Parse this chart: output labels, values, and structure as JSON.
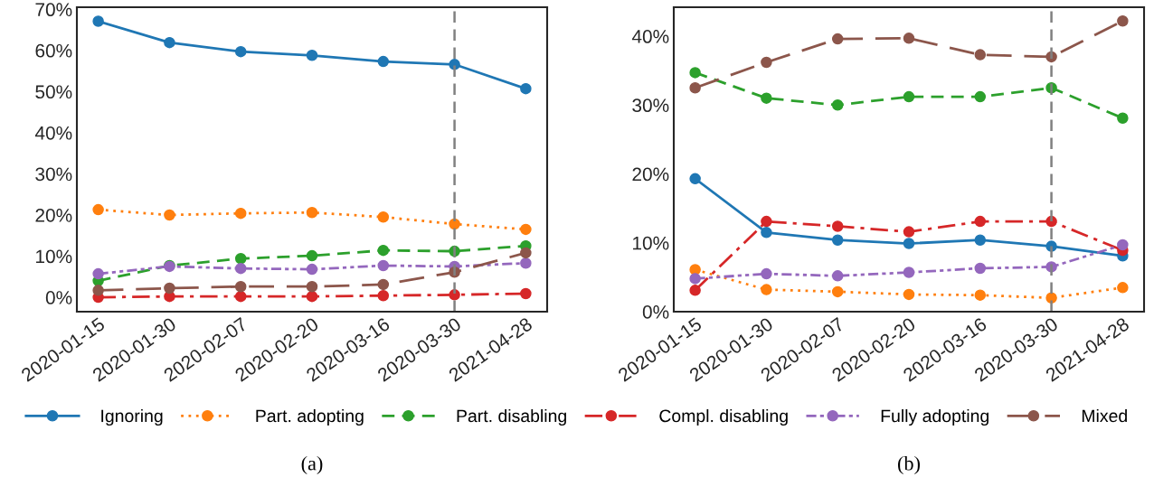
{
  "chart_data": [
    {
      "type": "line",
      "categories": [
        "2020-01-15",
        "2020-01-30",
        "2020-02-07",
        "2020-02-20",
        "2020-03-16",
        "2020-03-30",
        "2021-04-28"
      ],
      "series": [
        {
          "name": "Ignoring",
          "color": "#1f77b4",
          "line_style": "solid",
          "values": [
            67.1,
            61.9,
            59.7,
            58.8,
            57.3,
            56.6,
            50.7
          ]
        },
        {
          "name": "Part. adopting",
          "color": "#ff7f0e",
          "line_style": "dotted",
          "values": [
            21.3,
            20.0,
            20.4,
            20.6,
            19.5,
            17.8,
            16.5
          ]
        },
        {
          "name": "Part. disabling",
          "color": "#2ca02c",
          "line_style": "dashed",
          "values": [
            4.0,
            7.7,
            9.4,
            10.1,
            11.4,
            11.2,
            12.5
          ]
        },
        {
          "name": "Compl. disabling",
          "color": "#d62728",
          "line_style": "dashdot",
          "values": [
            0.0,
            0.2,
            0.2,
            0.2,
            0.4,
            0.6,
            0.9
          ]
        },
        {
          "name": "Fully adopting",
          "color": "#9467bd",
          "line_style": "dashdotdotted",
          "values": [
            5.7,
            7.5,
            7.0,
            6.8,
            7.7,
            7.5,
            8.3
          ]
        },
        {
          "name": "Mixed",
          "color": "#8c564b",
          "line_style": "longdashed",
          "values": [
            1.7,
            2.2,
            2.6,
            2.6,
            3.1,
            6.1,
            10.8
          ]
        }
      ],
      "ylim": [
        -3.5,
        70.5
      ],
      "yticks": [
        {
          "value": 0,
          "label": "0%"
        },
        {
          "value": 10,
          "label": "10%"
        },
        {
          "value": 20,
          "label": "20%"
        },
        {
          "value": 30,
          "label": "30%"
        },
        {
          "value": 40,
          "label": "40%"
        },
        {
          "value": 50,
          "label": "50%"
        },
        {
          "value": 60,
          "label": "60%"
        },
        {
          "value": 70,
          "label": "70%"
        }
      ],
      "ref_lines": [
        {
          "axis": "x",
          "value": "2020-03-30",
          "color": "#808080",
          "line_style": "dashed"
        }
      ],
      "marker": "circle",
      "grid": false,
      "legend": "bottom",
      "annotations": [
        "(a)"
      ]
    },
    {
      "type": "line",
      "categories": [
        "2020-01-15",
        "2020-01-30",
        "2020-02-07",
        "2020-02-20",
        "2020-03-16",
        "2020-03-30",
        "2021-04-28"
      ],
      "series": [
        {
          "color": "#1f77b4",
          "line_style": "solid",
          "values": [
            19.3,
            11.5,
            10.4,
            9.9,
            10.4,
            9.5,
            8.1
          ]
        },
        {
          "color": "#ff7f0e",
          "line_style": "dotted",
          "values": [
            6.1,
            3.2,
            2.9,
            2.5,
            2.4,
            2.0,
            3.5
          ]
        },
        {
          "color": "#2ca02c",
          "line_style": "dashed",
          "values": [
            34.7,
            31.0,
            30.0,
            31.2,
            31.2,
            32.5,
            28.1
          ]
        },
        {
          "color": "#d62728",
          "line_style": "dashdot",
          "values": [
            3.1,
            13.1,
            12.4,
            11.6,
            13.1,
            13.1,
            8.9
          ]
        },
        {
          "color": "#9467bd",
          "line_style": "dashdotdotted",
          "values": [
            4.8,
            5.5,
            5.2,
            5.7,
            6.3,
            6.5,
            9.7
          ]
        },
        {
          "color": "#8c564b",
          "line_style": "longdashed",
          "values": [
            32.5,
            36.2,
            39.6,
            39.7,
            37.3,
            37.0,
            42.2
          ]
        }
      ],
      "ylim": [
        0,
        44.2
      ],
      "yticks": [
        {
          "value": 0,
          "label": "0%"
        },
        {
          "value": 10,
          "label": "10%"
        },
        {
          "value": 20,
          "label": "20%"
        },
        {
          "value": 30,
          "label": "30%"
        },
        {
          "value": 40,
          "label": "40%"
        }
      ],
      "ref_lines": [
        {
          "axis": "x",
          "value": "2020-03-30",
          "color": "#808080",
          "line_style": "dashed"
        }
      ],
      "marker": "circle",
      "grid": false,
      "annotations": [
        "(b)"
      ]
    }
  ]
}
